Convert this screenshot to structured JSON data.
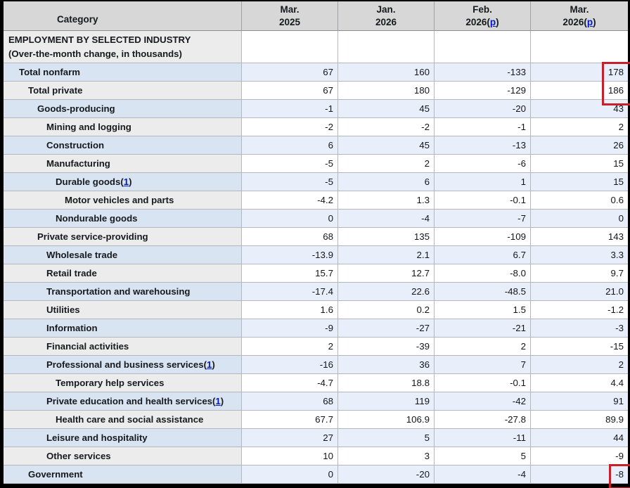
{
  "table": {
    "category_header": "Category",
    "columns": [
      {
        "line1": "Mar.",
        "line2": "2025",
        "prelim": false
      },
      {
        "line1": "Jan.",
        "line2": "2026",
        "prelim": false
      },
      {
        "line1": "Feb.",
        "line2": "2026",
        "prelim": true
      },
      {
        "line1": "Mar.",
        "line2": "2026",
        "prelim": true
      }
    ],
    "prelim_link_text": "p",
    "footnote_link_text": "1",
    "section": {
      "title_line1": "EMPLOYMENT BY SELECTED INDUSTRY",
      "title_line2": "(Over-the-month change, in thousands)"
    },
    "rows": [
      {
        "label": "Total nonfarm",
        "indent": 1,
        "footnote": false,
        "values": [
          "67",
          "160",
          "-133",
          "178"
        ],
        "shade": "blue"
      },
      {
        "label": "Total private",
        "indent": 2,
        "footnote": false,
        "values": [
          "67",
          "180",
          "-129",
          "186"
        ],
        "shade": "gray"
      },
      {
        "label": "Goods-producing",
        "indent": 3,
        "footnote": false,
        "values": [
          "-1",
          "45",
          "-20",
          "43"
        ],
        "shade": "blue"
      },
      {
        "label": "Mining and logging",
        "indent": 4,
        "footnote": false,
        "values": [
          "-2",
          "-2",
          "-1",
          "2"
        ],
        "shade": "gray"
      },
      {
        "label": "Construction",
        "indent": 4,
        "footnote": false,
        "values": [
          "6",
          "45",
          "-13",
          "26"
        ],
        "shade": "blue"
      },
      {
        "label": "Manufacturing",
        "indent": 4,
        "footnote": false,
        "values": [
          "-5",
          "2",
          "-6",
          "15"
        ],
        "shade": "gray"
      },
      {
        "label": "Durable goods",
        "indent": 5,
        "footnote": true,
        "values": [
          "-5",
          "6",
          "1",
          "15"
        ],
        "shade": "blue"
      },
      {
        "label": "Motor vehicles and parts",
        "indent": 6,
        "footnote": false,
        "values": [
          "-4.2",
          "1.3",
          "-0.1",
          "0.6"
        ],
        "shade": "gray"
      },
      {
        "label": "Nondurable goods",
        "indent": 5,
        "footnote": false,
        "values": [
          "0",
          "-4",
          "-7",
          "0"
        ],
        "shade": "blue"
      },
      {
        "label": "Private service-providing",
        "indent": 3,
        "footnote": false,
        "values": [
          "68",
          "135",
          "-109",
          "143"
        ],
        "shade": "gray"
      },
      {
        "label": "Wholesale trade",
        "indent": 4,
        "footnote": false,
        "values": [
          "-13.9",
          "2.1",
          "6.7",
          "3.3"
        ],
        "shade": "blue"
      },
      {
        "label": "Retail trade",
        "indent": 4,
        "footnote": false,
        "values": [
          "15.7",
          "12.7",
          "-8.0",
          "9.7"
        ],
        "shade": "gray"
      },
      {
        "label": "Transportation and warehousing",
        "indent": 4,
        "footnote": false,
        "values": [
          "-17.4",
          "22.6",
          "-48.5",
          "21.0"
        ],
        "shade": "blue"
      },
      {
        "label": "Utilities",
        "indent": 4,
        "footnote": false,
        "values": [
          "1.6",
          "0.2",
          "1.5",
          "-1.2"
        ],
        "shade": "gray"
      },
      {
        "label": "Information",
        "indent": 4,
        "footnote": false,
        "values": [
          "-9",
          "-27",
          "-21",
          "-3"
        ],
        "shade": "blue"
      },
      {
        "label": "Financial activities",
        "indent": 4,
        "footnote": false,
        "values": [
          "2",
          "-39",
          "2",
          "-15"
        ],
        "shade": "gray"
      },
      {
        "label": "Professional and business services",
        "indent": 4,
        "footnote": true,
        "values": [
          "-16",
          "36",
          "7",
          "2"
        ],
        "shade": "blue"
      },
      {
        "label": "Temporary help services",
        "indent": 5,
        "footnote": false,
        "values": [
          "-4.7",
          "18.8",
          "-0.1",
          "4.4"
        ],
        "shade": "gray"
      },
      {
        "label": "Private education and health services",
        "indent": 4,
        "footnote": true,
        "values": [
          "68",
          "119",
          "-42",
          "91"
        ],
        "shade": "blue"
      },
      {
        "label": "Health care and social assistance",
        "indent": 5,
        "footnote": false,
        "values": [
          "67.7",
          "106.9",
          "-27.8",
          "89.9"
        ],
        "shade": "gray"
      },
      {
        "label": "Leisure and hospitality",
        "indent": 4,
        "footnote": false,
        "values": [
          "27",
          "5",
          "-11",
          "44"
        ],
        "shade": "blue"
      },
      {
        "label": "Other services",
        "indent": 4,
        "footnote": false,
        "values": [
          "10",
          "3",
          "5",
          "-9"
        ],
        "shade": "gray"
      },
      {
        "label": "Government",
        "indent": 2,
        "footnote": false,
        "values": [
          "0",
          "-20",
          "-4",
          "-8"
        ],
        "shade": "blue"
      }
    ]
  },
  "highlights": {
    "color": "#c8202a",
    "boxes": [
      {
        "description": "Mar. 2026(p) values for Total nonfarm and Total private",
        "row_indices": [
          0,
          1
        ],
        "col_index": 3
      },
      {
        "description": "Mar. 2026(p) value for Government",
        "row_indices": [
          22
        ],
        "col_index": 3
      }
    ]
  }
}
